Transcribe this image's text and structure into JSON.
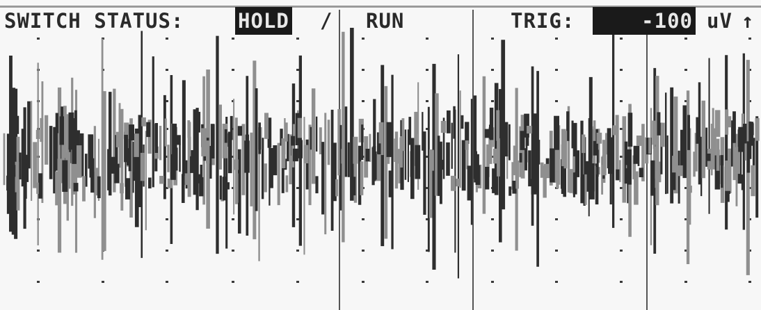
{
  "status": {
    "switch_label": "SWITCH STATUS:",
    "hold_label": "HOLD",
    "separator": "/",
    "run_label": "RUN",
    "trig_label": "TRIG:",
    "trig_value": "-100",
    "trig_unit": "uV",
    "trig_slope_icon": "up-arrow-icon"
  },
  "colors": {
    "background": "#f7f7f7",
    "trace_dark": "#2e2e2e",
    "trace_light": "#8f8f8f",
    "grid_dot": "#3a3a3a",
    "inverse_bg": "#1a1a1a"
  }
}
